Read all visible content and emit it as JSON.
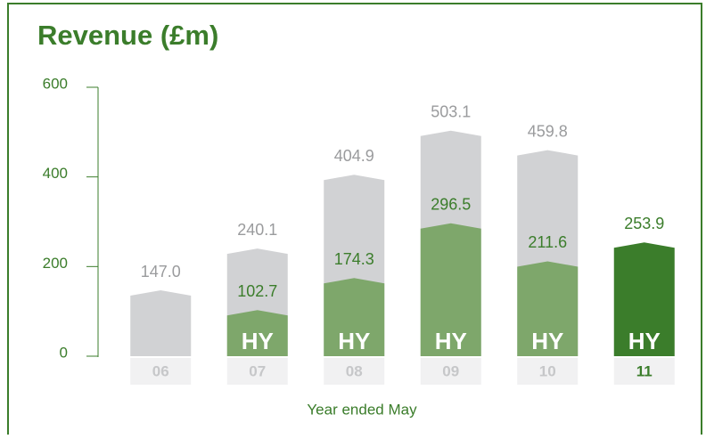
{
  "chart_data": {
    "type": "bar",
    "title": "Revenue (£m)",
    "x_label": "Year ended May",
    "categories": [
      "06",
      "07",
      "08",
      "09",
      "10",
      "11"
    ],
    "series": [
      {
        "color": "#d1d2d4",
        "values": [
          147.0,
          240.1,
          404.9,
          503.1,
          459.8,
          null
        ],
        "value_labels": [
          "147.0",
          "240.1",
          "404.9",
          "503.1",
          "459.8",
          null
        ]
      },
      {
        "name": "HY",
        "color": "#7ea76b",
        "colors": [
          null,
          "#7ea76b",
          "#7ea76b",
          "#7ea76b",
          "#7ea76b",
          "#3b7d2b"
        ],
        "values": [
          null,
          102.7,
          174.3,
          296.5,
          211.6,
          253.9
        ],
        "value_labels": [
          null,
          "102.7",
          "174.3",
          "296.5",
          "211.6",
          "253.9"
        ]
      }
    ],
    "ylim": [
      0,
      600
    ],
    "yticks": [
      0,
      200,
      400,
      600
    ]
  }
}
